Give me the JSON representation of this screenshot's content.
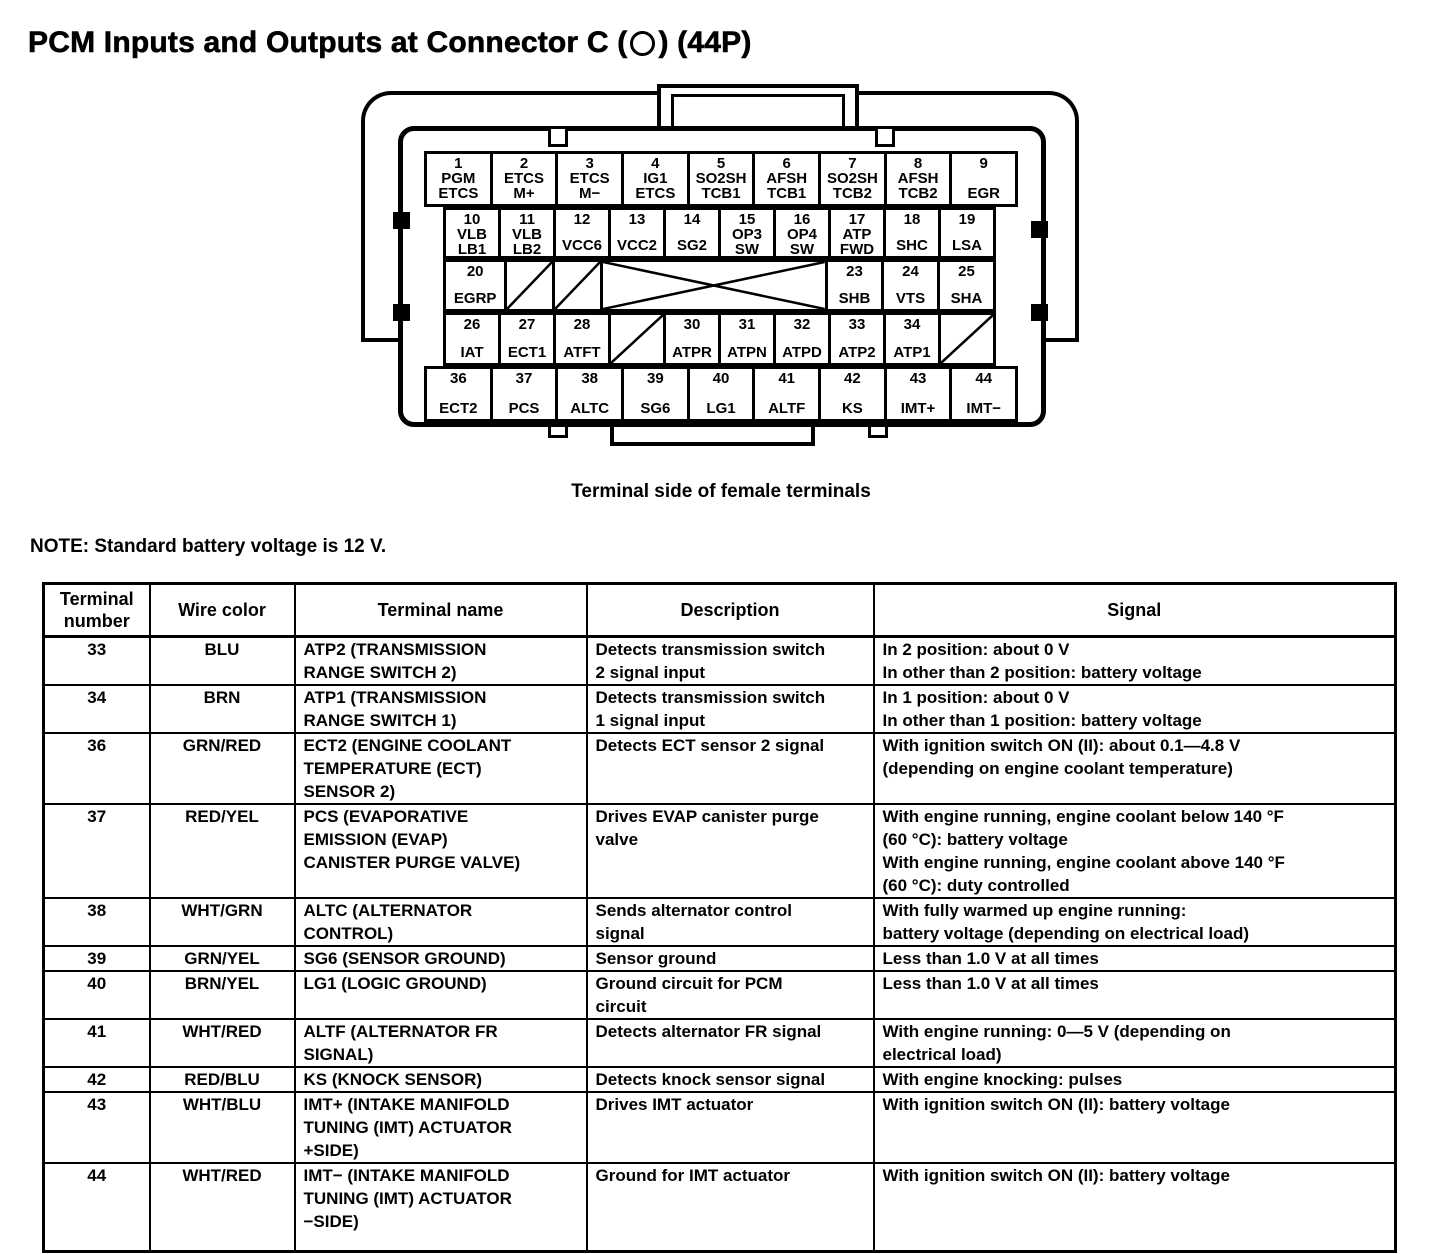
{
  "title": {
    "prefix": "PCM Inputs and Outputs at Connector C (",
    "suffix": ") (44P)"
  },
  "connector": {
    "caption": "Terminal side of female terminals",
    "rows": [
      {
        "cells": [
          {
            "kind": "pin",
            "n": "1",
            "l": "PGM\nETCS"
          },
          {
            "kind": "pin",
            "n": "2",
            "l": "ETCS\nM+"
          },
          {
            "kind": "pin",
            "n": "3",
            "l": "ETCS\nM−"
          },
          {
            "kind": "pin",
            "n": "4",
            "l": "IG1\nETCS"
          },
          {
            "kind": "pin",
            "n": "5",
            "l": "SO2SH\nTCB1"
          },
          {
            "kind": "pin",
            "n": "6",
            "l": "AFSH\nTCB1"
          },
          {
            "kind": "pin",
            "n": "7",
            "l": "SO2SH\nTCB2"
          },
          {
            "kind": "pin",
            "n": "8",
            "l": "AFSH\nTCB2"
          },
          {
            "kind": "pin",
            "n": "9",
            "l": "EGR"
          }
        ]
      },
      {
        "cells": [
          {
            "kind": "pin",
            "n": "10",
            "l": "VLB\nLB1"
          },
          {
            "kind": "pin",
            "n": "11",
            "l": "VLB\nLB2"
          },
          {
            "kind": "pin",
            "n": "12",
            "l": "VCC6"
          },
          {
            "kind": "pin",
            "n": "13",
            "l": "VCC2"
          },
          {
            "kind": "pin",
            "n": "14",
            "l": "SG2"
          },
          {
            "kind": "pin",
            "n": "15",
            "l": "OP3\nSW"
          },
          {
            "kind": "pin",
            "n": "16",
            "l": "OP4\nSW"
          },
          {
            "kind": "pin",
            "n": "17",
            "l": "ATP\nFWD"
          },
          {
            "kind": "pin",
            "n": "18",
            "l": "SHC"
          },
          {
            "kind": "pin",
            "n": "19",
            "l": "LSA"
          }
        ]
      },
      {
        "cells": [
          {
            "kind": "pin",
            "n": "20",
            "l": "EGRP"
          },
          {
            "kind": "slash"
          },
          {
            "kind": "slash"
          },
          {
            "kind": "cross"
          },
          {
            "kind": "pin",
            "n": "23",
            "l": "SHB"
          },
          {
            "kind": "pin",
            "n": "24",
            "l": "VTS"
          },
          {
            "kind": "pin",
            "n": "25",
            "l": "SHA"
          }
        ]
      },
      {
        "cells": [
          {
            "kind": "pin",
            "n": "26",
            "l": "IAT"
          },
          {
            "kind": "pin",
            "n": "27",
            "l": "ECT1"
          },
          {
            "kind": "pin",
            "n": "28",
            "l": "ATFT"
          },
          {
            "kind": "slash"
          },
          {
            "kind": "pin",
            "n": "30",
            "l": "ATPR"
          },
          {
            "kind": "pin",
            "n": "31",
            "l": "ATPN"
          },
          {
            "kind": "pin",
            "n": "32",
            "l": "ATPD"
          },
          {
            "kind": "pin",
            "n": "33",
            "l": "ATP2"
          },
          {
            "kind": "pin",
            "n": "34",
            "l": "ATP1"
          },
          {
            "kind": "slash"
          }
        ]
      },
      {
        "cells": [
          {
            "kind": "pin",
            "n": "36",
            "l": "ECT2"
          },
          {
            "kind": "pin",
            "n": "37",
            "l": "PCS"
          },
          {
            "kind": "pin",
            "n": "38",
            "l": "ALTC"
          },
          {
            "kind": "pin",
            "n": "39",
            "l": "SG6"
          },
          {
            "kind": "pin",
            "n": "40",
            "l": "LG1"
          },
          {
            "kind": "pin",
            "n": "41",
            "l": "ALTF"
          },
          {
            "kind": "pin",
            "n": "42",
            "l": "KS"
          },
          {
            "kind": "pin",
            "n": "43",
            "l": "IMT+"
          },
          {
            "kind": "pin",
            "n": "44",
            "l": "IMT−"
          }
        ]
      }
    ]
  },
  "note": "NOTE: Standard battery voltage is 12 V.",
  "table": {
    "headers": [
      "Terminal number",
      "Wire color",
      "Terminal name",
      "Description",
      "Signal"
    ],
    "rows": [
      {
        "terminal": "33",
        "wire": "BLU",
        "name": "ATP2 (TRANSMISSION\nRANGE SWITCH 2)",
        "desc": "Detects transmission switch\n2 signal input",
        "signal": "In 2 position: about 0 V\nIn other than 2 position: battery voltage"
      },
      {
        "terminal": "34",
        "wire": "BRN",
        "name": "ATP1 (TRANSMISSION\nRANGE SWITCH 1)",
        "desc": "Detects transmission switch\n1 signal input",
        "signal": "In 1 position: about 0 V\nIn other than 1 position: battery voltage"
      },
      {
        "terminal": "36",
        "wire": "GRN/RED",
        "name": "ECT2 (ENGINE COOLANT\nTEMPERATURE (ECT)\nSENSOR 2)",
        "desc": "Detects ECT sensor 2 signal",
        "signal": "With ignition switch ON (II): about 0.1—4.8 V\n(depending on engine coolant temperature)"
      },
      {
        "terminal": "37",
        "wire": "RED/YEL",
        "name": "PCS (EVAPORATIVE\nEMISSION (EVAP)\nCANISTER PURGE VALVE)",
        "desc": "Drives EVAP canister purge\nvalve",
        "signal": "With engine running, engine coolant below 140 °F\n(60 °C): battery voltage\nWith engine running, engine coolant above 140 °F\n(60 °C): duty controlled"
      },
      {
        "terminal": "38",
        "wire": "WHT/GRN",
        "name": "ALTC (ALTERNATOR\nCONTROL)",
        "desc": "Sends alternator control\nsignal",
        "signal": "With fully warmed up engine running:\nbattery voltage (depending on electrical load)"
      },
      {
        "terminal": "39",
        "wire": "GRN/YEL",
        "name": "SG6 (SENSOR GROUND)",
        "desc": "Sensor ground",
        "signal": "Less than 1.0 V at all times"
      },
      {
        "terminal": "40",
        "wire": "BRN/YEL",
        "name": "LG1 (LOGIC GROUND)",
        "desc": "Ground circuit for PCM\ncircuit",
        "signal": "Less than 1.0 V at all times"
      },
      {
        "terminal": "41",
        "wire": "WHT/RED",
        "name": "ALTF (ALTERNATOR FR\nSIGNAL)",
        "desc": "Detects alternator FR signal",
        "signal": "With engine running: 0—5 V (depending on\nelectrical load)"
      },
      {
        "terminal": "42",
        "wire": "RED/BLU",
        "name": "KS (KNOCK SENSOR)",
        "desc": "Detects knock sensor signal",
        "signal": "With engine knocking: pulses"
      },
      {
        "terminal": "43",
        "wire": "WHT/BLU",
        "name": "IMT+ (INTAKE MANIFOLD\nTUNING (IMT) ACTUATOR\n+SIDE)",
        "desc": "Drives IMT actuator",
        "signal": "With ignition switch ON (II): battery voltage"
      },
      {
        "terminal": "44",
        "wire": "WHT/RED",
        "name": "IMT− (INTAKE MANIFOLD\nTUNING (IMT) ACTUATOR\n−SIDE)",
        "desc": "Ground for IMT actuator",
        "signal": "With ignition switch ON (II): battery voltage"
      }
    ]
  }
}
